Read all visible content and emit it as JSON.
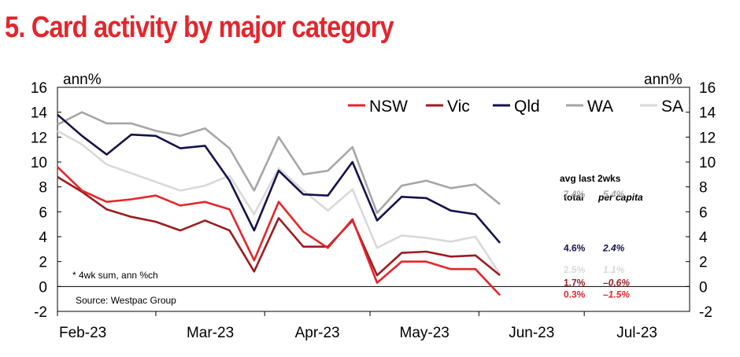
{
  "title": "5. Card activity by major category",
  "chart_data": {
    "type": "line",
    "unit_left": "ann%",
    "unit_right": "ann%",
    "ylim": [
      -2,
      16
    ],
    "yticks": [
      -2,
      0,
      2,
      4,
      6,
      8,
      10,
      12,
      14,
      16
    ],
    "xlim": [
      "2023-02-01",
      "2023-07-31"
    ],
    "xtick_labels": [
      "Feb-23",
      "Mar-23",
      "Apr-23",
      "May-23",
      "Jun-23",
      "Jul-23"
    ],
    "x": [
      "2023-02-01",
      "2023-02-08",
      "2023-02-15",
      "2023-02-22",
      "2023-03-01",
      "2023-03-08",
      "2023-03-15",
      "2023-03-22",
      "2023-03-29",
      "2023-04-05",
      "2023-04-12",
      "2023-04-19",
      "2023-04-26",
      "2023-05-03",
      "2023-05-10",
      "2023-05-17",
      "2023-05-24",
      "2023-05-31",
      "2023-06-07",
      "2023-06-14",
      "2023-06-21"
    ],
    "series": [
      {
        "name": "NSW",
        "color": "#e3262c",
        "values": [
          9.6,
          7.7,
          6.8,
          7.0,
          7.3,
          6.5,
          6.8,
          6.2,
          2.1,
          6.8,
          4.4,
          3.1,
          5.4,
          0.3,
          2.0,
          2.0,
          1.4,
          1.4,
          -0.7,
          null,
          null
        ]
      },
      {
        "name": "Vic",
        "color": "#9b1c1f",
        "values": [
          8.8,
          7.6,
          6.2,
          5.6,
          5.2,
          4.5,
          5.3,
          4.5,
          1.2,
          5.5,
          3.2,
          3.2,
          5.3,
          0.9,
          2.7,
          2.8,
          2.4,
          2.5,
          0.9,
          null,
          null
        ]
      },
      {
        "name": "Qld",
        "color": "#14124a",
        "values": [
          13.8,
          12.1,
          10.6,
          12.2,
          12.1,
          11.1,
          11.3,
          8.5,
          4.5,
          9.3,
          7.4,
          7.3,
          10.0,
          5.3,
          7.2,
          7.1,
          6.1,
          5.8,
          3.5,
          null,
          null
        ]
      },
      {
        "name": "WA",
        "color": "#a6a6a6",
        "values": [
          13.0,
          14.0,
          13.1,
          13.1,
          12.5,
          12.1,
          12.7,
          11.1,
          7.7,
          12.0,
          9.0,
          9.3,
          11.2,
          5.9,
          8.1,
          8.5,
          7.9,
          8.2,
          6.6,
          null,
          null
        ]
      },
      {
        "name": "SA",
        "color": "#d9d9d9",
        "values": [
          12.5,
          11.4,
          9.8,
          9.1,
          8.4,
          7.7,
          8.1,
          8.9,
          5.8,
          9.5,
          7.7,
          6.1,
          7.8,
          3.1,
          4.1,
          3.9,
          3.6,
          4.0,
          1.0,
          null,
          null
        ]
      }
    ],
    "table": {
      "header": "avg last 2wks",
      "col_total": "total",
      "col_per_capita": "per capita",
      "rows": [
        {
          "state": "WA",
          "total": "7.4%",
          "per_capita": "5.4%",
          "color": "#a6a6a6",
          "y": 7.4
        },
        {
          "state": "Qld",
          "total": "4.6%",
          "per_capita": "2.4%",
          "color": "#14124a",
          "y": 3.1
        },
        {
          "state": "SA",
          "total": "2.5%",
          "per_capita": "1.1%",
          "color": "#d9d9d9",
          "y": 1.35
        },
        {
          "state": "Vic",
          "total": "1.7%",
          "per_capita": "–0.6%",
          "color": "#9b1c1f",
          "y": 0.3
        },
        {
          "state": "NSW",
          "total": "0.3%",
          "per_capita": "–1.5%",
          "color": "#e3262c",
          "y": -0.65
        }
      ]
    },
    "note": "* 4wk sum, ann %ch",
    "source": "Source: Westpac Group",
    "legend_position": "top-right"
  }
}
